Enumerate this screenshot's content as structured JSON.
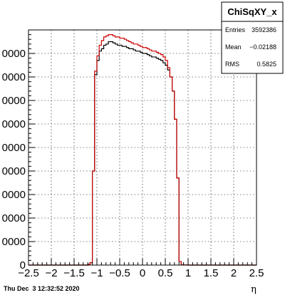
{
  "chart_data": {
    "type": "histogram",
    "xlabel": "η",
    "ylabel": "",
    "xlim": [
      -2.5,
      2.5
    ],
    "ylim": [
      0,
      100000
    ],
    "grid": true,
    "x_ticks": [
      {
        "value": -2.5,
        "label": "−2.5"
      },
      {
        "value": -2,
        "label": "−2"
      },
      {
        "value": -1.5,
        "label": "−1.5"
      },
      {
        "value": -1,
        "label": "−1"
      },
      {
        "value": -0.5,
        "label": "−0.5"
      },
      {
        "value": 0,
        "label": "0"
      },
      {
        "value": 0.5,
        "label": "0.5"
      },
      {
        "value": 1,
        "label": "1"
      },
      {
        "value": 1.5,
        "label": "1.5"
      },
      {
        "value": 2,
        "label": "2"
      },
      {
        "value": 2.5,
        "label": "2.5"
      }
    ],
    "y_ticks": [
      {
        "value": 0,
        "label": "0"
      },
      {
        "value": 10000,
        "label": "0000"
      },
      {
        "value": 20000,
        "label": "0000"
      },
      {
        "value": 30000,
        "label": "0000"
      },
      {
        "value": 40000,
        "label": "0000"
      },
      {
        "value": 50000,
        "label": "0000"
      },
      {
        "value": 60000,
        "label": "0000"
      },
      {
        "value": 70000,
        "label": "0000"
      },
      {
        "value": 80000,
        "label": "0000"
      },
      {
        "value": 90000,
        "label": "0000"
      }
    ],
    "bin_edges": [
      -2.5,
      -2.4,
      -2.3,
      -2.2,
      -2.1,
      -2.0,
      -1.9,
      -1.8,
      -1.7,
      -1.6,
      -1.5,
      -1.4,
      -1.3,
      -1.2,
      -1.15,
      -1.1,
      -1.05,
      -1.0,
      -0.95,
      -0.9,
      -0.85,
      -0.8,
      -0.75,
      -0.7,
      -0.65,
      -0.6,
      -0.55,
      -0.5,
      -0.45,
      -0.4,
      -0.35,
      -0.3,
      -0.25,
      -0.2,
      -0.15,
      -0.1,
      -0.05,
      0.0,
      0.05,
      0.1,
      0.15,
      0.2,
      0.25,
      0.3,
      0.35,
      0.4,
      0.45,
      0.5,
      0.55,
      0.6,
      0.65,
      0.7,
      0.75,
      0.8,
      0.85,
      0.9,
      0.95,
      1.0,
      1.05,
      1.1,
      1.15,
      1.2,
      1.3,
      1.4,
      1.5,
      1.6,
      1.7,
      1.8,
      1.9,
      2.0,
      2.1,
      2.2,
      2.3,
      2.4,
      2.5
    ],
    "series": [
      {
        "color": "#000000",
        "values": [
          0,
          0,
          0,
          0,
          0,
          0,
          0,
          0,
          0,
          0,
          0,
          0,
          0,
          300,
          1000,
          40000,
          81000,
          87000,
          91000,
          92000,
          93500,
          94000,
          95000,
          95000,
          94500,
          94000,
          93500,
          93500,
          93000,
          93000,
          92500,
          92000,
          92000,
          91500,
          91000,
          91000,
          90500,
          90000,
          90000,
          89500,
          89000,
          88500,
          88500,
          88000,
          87500,
          87000,
          86000,
          85000,
          83000,
          80000,
          74000,
          62000,
          37000,
          1500,
          100,
          50,
          50,
          0,
          0,
          0,
          0,
          0,
          0,
          0,
          0,
          0,
          0,
          0,
          0,
          0,
          0,
          0,
          0,
          0
        ]
      },
      {
        "color": "#cc0000",
        "values": [
          0,
          0,
          0,
          0,
          0,
          0,
          0,
          0,
          0,
          0,
          0,
          0,
          0,
          300,
          1000,
          40000,
          82500,
          89000,
          93500,
          95500,
          97000,
          97500,
          98000,
          98000,
          97500,
          97000,
          97000,
          96500,
          96500,
          96000,
          95500,
          95000,
          94500,
          94000,
          94000,
          93500,
          93000,
          92500,
          92500,
          92000,
          91500,
          91000,
          91000,
          90500,
          90000,
          89500,
          88500,
          87000,
          84000,
          80000,
          74000,
          62000,
          37000,
          1500,
          100,
          50,
          50,
          0,
          0,
          0,
          0,
          0,
          0,
          0,
          0,
          0,
          0,
          0,
          0,
          0,
          0,
          0,
          0,
          0
        ]
      }
    ]
  },
  "stats_box": {
    "title": "ChiSqXY_x",
    "rows": [
      {
        "label": "Entries",
        "value": "3592386"
      },
      {
        "label": "Mean",
        "value": "−0.02188"
      },
      {
        "label": "RMS",
        "value": "0.5825"
      }
    ]
  },
  "footer": {
    "timestamp": "Thu Dec  3 12:32:52 2020"
  }
}
